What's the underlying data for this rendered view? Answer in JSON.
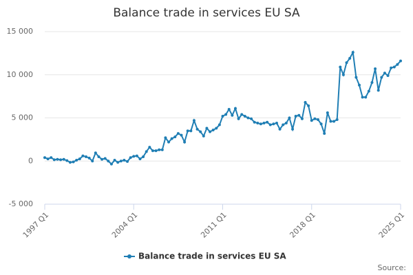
{
  "chart_data": {
    "type": "line",
    "title": "Balance trade in services EU SA",
    "categories": [
      "1997 Q1",
      null,
      null,
      null,
      null,
      null,
      null,
      null,
      null,
      null,
      null,
      null,
      null,
      null,
      null,
      null,
      null,
      null,
      null,
      null,
      null,
      null,
      null,
      null,
      null,
      null,
      null,
      null,
      "2004 Q1",
      null,
      null,
      null,
      null,
      null,
      null,
      null,
      null,
      null,
      null,
      null,
      null,
      null,
      null,
      null,
      null,
      null,
      null,
      null,
      null,
      null,
      null,
      null,
      null,
      null,
      null,
      null,
      "2011 Q1",
      null,
      null,
      null,
      null,
      null,
      null,
      null,
      null,
      null,
      null,
      null,
      null,
      null,
      null,
      null,
      null,
      null,
      null,
      null,
      null,
      null,
      null,
      null,
      null,
      null,
      null,
      null,
      "2018 Q1",
      null,
      null,
      null,
      null,
      null,
      null,
      null,
      null,
      null,
      null,
      null,
      null,
      null,
      null,
      null,
      null,
      null,
      null,
      null,
      null,
      null,
      null,
      null,
      null,
      null,
      null,
      null,
      "2025 Q1"
    ],
    "series": [
      {
        "name": "Balance trade in services EU SA",
        "color": "#1f7eb4",
        "values": [
          400,
          250,
          400,
          150,
          200,
          150,
          200,
          50,
          -150,
          -100,
          100,
          250,
          600,
          500,
          350,
          0,
          950,
          500,
          200,
          300,
          0,
          -350,
          100,
          -150,
          0,
          100,
          -50,
          400,
          550,
          600,
          250,
          500,
          1100,
          1600,
          1200,
          1200,
          1300,
          1300,
          2700,
          2200,
          2600,
          2800,
          3200,
          3000,
          2200,
          3500,
          3500,
          4700,
          3700,
          3400,
          2900,
          3800,
          3400,
          3600,
          3800,
          4200,
          5200,
          5400,
          6000,
          5300,
          6100,
          4900,
          5400,
          5200,
          5000,
          4900,
          4500,
          4400,
          4300,
          4400,
          4500,
          4200,
          4300,
          4400,
          3700,
          4200,
          4400,
          5000,
          3700,
          5200,
          5300,
          4900,
          6800,
          6400,
          4700,
          4900,
          4800,
          4300,
          3200,
          5600,
          4600,
          4600,
          4800,
          10900,
          10000,
          11400,
          11900,
          12600,
          9700,
          8800,
          7400,
          7400,
          8100,
          9100,
          10700,
          8200,
          9700,
          10200,
          9900,
          10800,
          10900,
          11200,
          11600
        ]
      }
    ],
    "ylim": [
      -5000,
      15000
    ],
    "yticks": [
      {
        "value": -5000,
        "label": "-5 000"
      },
      0,
      {
        "value": 5000,
        "label": "5 000"
      },
      {
        "value": 10000,
        "label": "10 000"
      },
      {
        "value": 15000,
        "label": "15 000"
      }
    ],
    "grid": true,
    "source": "Source:"
  }
}
